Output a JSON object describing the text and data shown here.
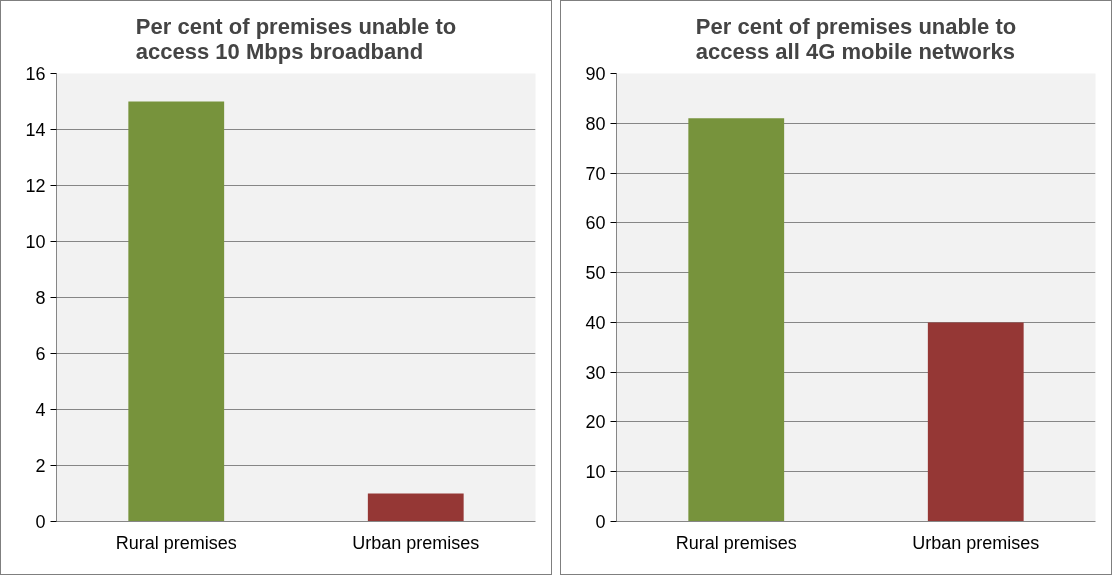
{
  "chart_data": [
    {
      "type": "bar",
      "title": "Per cent of premises unable to access 10 Mbps broadband",
      "categories": [
        "Rural premises",
        "Urban premises"
      ],
      "values": [
        15,
        1
      ],
      "colors": [
        "#77933c",
        "#953735"
      ],
      "ylim": [
        0,
        16
      ],
      "yticks": [
        0,
        2,
        4,
        6,
        8,
        10,
        12,
        14,
        16
      ],
      "grid": "y",
      "legend": false
    },
    {
      "type": "bar",
      "title": "Per cent of premises unable to access all 4G mobile networks",
      "categories": [
        "Rural premises",
        "Urban premises"
      ],
      "values": [
        81,
        40
      ],
      "colors": [
        "#77933c",
        "#953735"
      ],
      "ylim": [
        0,
        90
      ],
      "yticks": [
        0,
        10,
        20,
        30,
        40,
        50,
        60,
        70,
        80,
        90
      ],
      "grid": "y",
      "legend": false
    }
  ]
}
